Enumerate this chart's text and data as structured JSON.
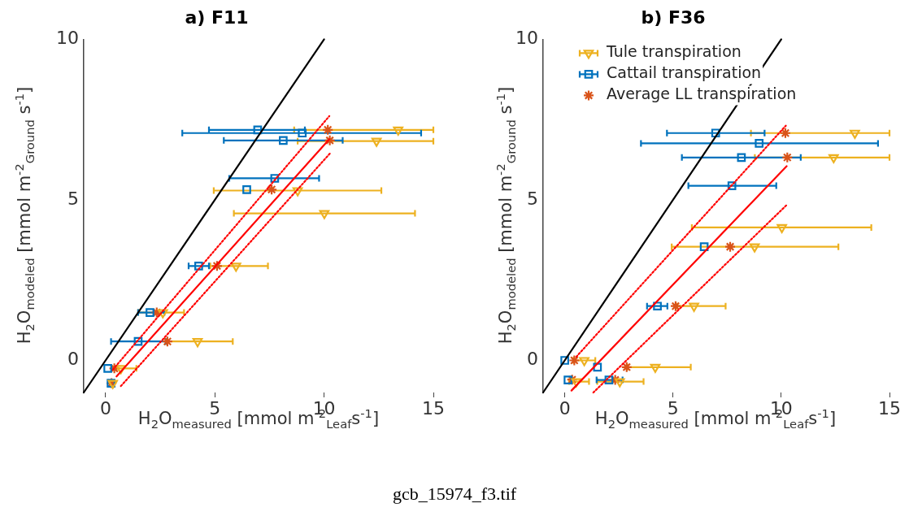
{
  "chart_data": [
    {
      "type": "scatter",
      "title": "a) F11",
      "xlabel": "H$_{2}$O$_{measured}$ [mmol m$^{-2}$$_{Leaf}$s$^{-1}$]",
      "ylabel": "H$_{2}$O$_{modeled}$ [mmol m$^{-2}$$_{Ground}$ s$^{-1}$]",
      "xlim": [
        -1,
        15
      ],
      "xticks": [
        0,
        5,
        10,
        15
      ],
      "ylim": [
        -1,
        10
      ],
      "yticks": [
        0,
        5,
        10
      ],
      "grid": false,
      "series": [
        {
          "type": "scatter",
          "marker": "triangle",
          "color": "#edb120",
          "x": [
            13.39,
            12.4,
            8.79,
            10.01,
            5.97,
            2.62,
            4.21,
            0.7,
            0.33
          ],
          "values": [
            7.18,
            6.83,
            5.29,
            4.58,
            2.94,
            1.49,
            0.59,
            -0.25,
            -0.71
          ],
          "xerrors": [
            [
              8.63,
              15
            ],
            [
              8.79,
              15
            ],
            [
              4.95,
              12.62
            ],
            [
              5.87,
              14.16
            ],
            [
              4.79,
              7.43
            ],
            [
              1.49,
              3.59
            ],
            [
              2.75,
              5.82
            ],
            [
              0.3,
              1.41
            ],
            null
          ]
        },
        {
          "type": "scatter",
          "marker": "square",
          "color": "#0072bd",
          "x": [
            6.96,
            9.0,
            8.13,
            7.74,
            6.46,
            4.26,
            2.03,
            1.49,
            0.1,
            0.25
          ],
          "values": [
            7.18,
            7.08,
            6.85,
            5.67,
            5.32,
            2.94,
            1.49,
            0.59,
            -0.25,
            -0.71
          ],
          "xerrors": [
            [
              4.73,
              9.12
            ],
            [
              3.51,
              14.44
            ],
            [
              5.41,
              10.85
            ],
            [
              5.66,
              9.77
            ],
            null,
            [
              3.8,
              4.73
            ],
            [
              1.49,
              2.69
            ],
            [
              0.25,
              2.75
            ],
            null,
            null
          ]
        },
        {
          "type": "scatter",
          "marker": "cross",
          "color": "#d95319",
          "x": [
            10.17,
            10.26,
            7.6,
            5.1,
            2.34,
            2.83,
            0.4,
            0.27
          ],
          "values": [
            7.18,
            6.85,
            5.32,
            2.94,
            1.49,
            0.59,
            -0.25,
            -0.71
          ]
        },
        {
          "type": "line",
          "marker": "none",
          "line_style": "solid",
          "color": "#000000",
          "x": [
            -1,
            10
          ],
          "values": [
            -1,
            10
          ]
        },
        {
          "type": "line",
          "marker": "none",
          "line_style": "solid",
          "color": "#ff0000",
          "x": [
            0.5,
            10.24
          ],
          "values": [
            -0.5,
            6.89
          ]
        },
        {
          "type": "line",
          "marker": "none",
          "line_style": "dotted",
          "color": "#ff0000",
          "x": [
            0.33,
            10.24
          ],
          "values": [
            -0.29,
            7.61
          ]
        },
        {
          "type": "line",
          "marker": "none",
          "line_style": "dotted",
          "color": "#ff0000",
          "x": [
            0.7,
            10.3
          ],
          "values": [
            -0.8,
            6.47
          ]
        }
      ]
    },
    {
      "type": "scatter",
      "title": "b) F36",
      "xlabel": "H$_{2}$O$_{measured}$ [mmol m$^{-2}$$_{Leaf}$s$^{-1}$]",
      "ylabel": "H$_{2}$O$_{modeled}$ [mmol m$^{-2}$$_{Ground}$ s$^{-1}$]",
      "xlim": [
        -1,
        15
      ],
      "xticks": [
        0,
        5,
        10,
        15
      ],
      "ylim": [
        -1,
        10
      ],
      "yticks": [
        0,
        5,
        10
      ],
      "grid": false,
      "legend": "top",
      "annotations": [
        "gcb_15974_f3.tif"
      ],
      "series": [
        {
          "name": "Tule transpiration",
          "type": "scatter",
          "marker": "triangle",
          "color": "#edb120",
          "x": [
            13.4,
            12.42,
            10.03,
            8.77,
            5.97,
            4.18,
            0.9,
            0.53,
            2.54
          ],
          "values": [
            7.08,
            6.32,
            4.14,
            3.54,
            1.69,
            -0.21,
            0,
            -0.66,
            -0.66
          ],
          "xerrors": [
            [
              8.6,
              15
            ],
            [
              8.78,
              15
            ],
            [
              5.87,
              14.16
            ],
            [
              4.94,
              12.64
            ],
            [
              5.2,
              7.43
            ],
            [
              2.9,
              5.82
            ],
            [
              0.4,
              1.41
            ],
            [
              0.2,
              1.12
            ],
            [
              1.5,
              3.64
            ]
          ]
        },
        {
          "name": "Cattail transpiration",
          "type": "scatter",
          "marker": "square",
          "color": "#0072bd",
          "x": [
            6.97,
            8.98,
            8.16,
            7.72,
            6.44,
            4.28,
            1.51,
            0,
            0.15,
            2.04
          ],
          "values": [
            7.08,
            6.76,
            6.32,
            5.44,
            3.54,
            1.69,
            -0.21,
            0,
            -0.61,
            -0.61
          ],
          "xerrors": [
            [
              4.72,
              9.23
            ],
            [
              3.52,
              14.47
            ],
            [
              5.41,
              10.9
            ],
            [
              5.71,
              9.77
            ],
            null,
            [
              3.8,
              4.74
            ],
            null,
            null,
            null,
            [
              1.47,
              2.67
            ]
          ]
        },
        {
          "name": "Average LL transpiration",
          "type": "scatter",
          "marker": "cross",
          "color": "#d95319",
          "x": [
            10.19,
            10.28,
            7.64,
            5.12,
            2.86,
            0.44,
            0.34,
            2.33
          ],
          "values": [
            7.08,
            6.32,
            3.54,
            1.69,
            -0.21,
            0,
            -0.6,
            -0.61
          ]
        },
        {
          "type": "line",
          "marker": "none",
          "line_style": "solid",
          "color": "#000000",
          "x": [
            -1,
            10
          ],
          "values": [
            -1,
            10
          ]
        },
        {
          "type": "line",
          "marker": "none",
          "line_style": "solid",
          "color": "#ff0000",
          "x": [
            0.31,
            10.25
          ],
          "values": [
            -0.94,
            6.05
          ]
        },
        {
          "type": "line",
          "marker": "none",
          "line_style": "dotted",
          "color": "#ff0000",
          "x": [
            0.53,
            10.21
          ],
          "values": [
            0.11,
            7.31
          ]
        },
        {
          "type": "line",
          "marker": "none",
          "line_style": "dotted",
          "color": "#ff0000",
          "x": [
            1.32,
            10.28
          ],
          "values": [
            -1.0,
            4.86
          ]
        }
      ]
    }
  ]
}
